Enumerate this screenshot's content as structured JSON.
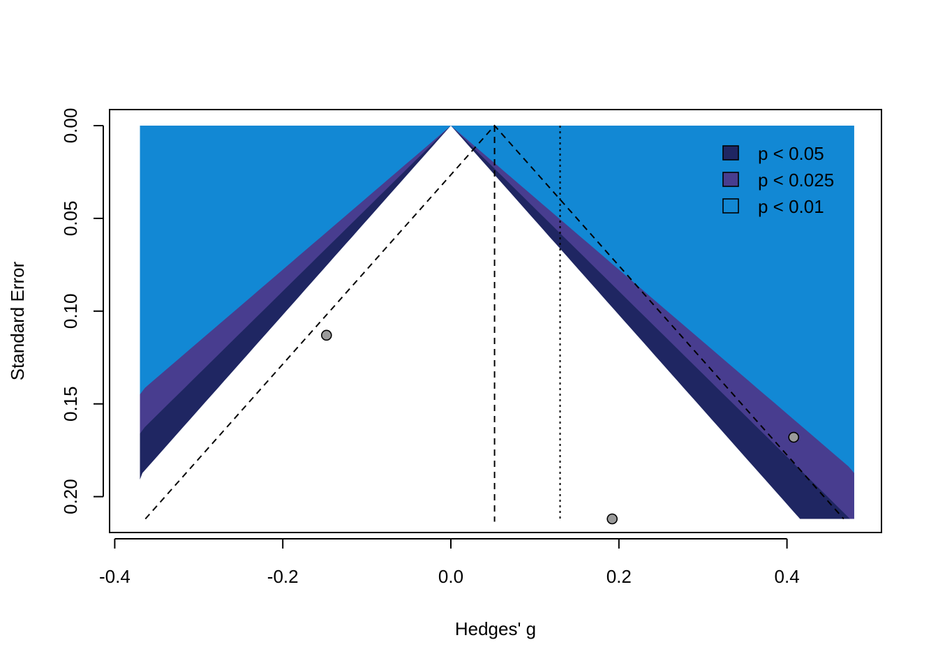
{
  "chart_data": {
    "type": "scatter",
    "subtype": "contour-enhanced funnel plot",
    "xlabel": "Hedges' g",
    "ylabel": "Standard Error",
    "xlim": [
      -0.37,
      0.48
    ],
    "ylim_reversed": [
      0.0,
      0.212
    ],
    "x_ticks": [
      -0.4,
      -0.2,
      0.0,
      0.2,
      0.4
    ],
    "x_tick_labels": [
      "-0.4",
      "-0.2",
      "0.0",
      "0.2",
      "0.4"
    ],
    "y_ticks": [
      0.0,
      0.05,
      0.1,
      0.15,
      0.2
    ],
    "y_tick_labels": [
      "0.00",
      "0.05",
      "0.10",
      "0.15",
      "0.20"
    ],
    "contour_center": 0.0,
    "background_color": "#1288d4",
    "contours": [
      {
        "label": "p < 0.05",
        "z": 1.96,
        "color": "#1f2662"
      },
      {
        "label": "p < 0.025",
        "z": 2.241,
        "color": "#483d8f"
      },
      {
        "label": "p < 0.01",
        "z": 2.576,
        "color": "#1288d4"
      }
    ],
    "points": [
      {
        "x": -0.148,
        "se": 0.113
      },
      {
        "x": 0.192,
        "se": 0.212
      },
      {
        "x": 0.408,
        "se": 0.168
      }
    ],
    "point_color": "#9a9a9a",
    "pooled_estimate": 0.052,
    "reference_line_x": 0.13,
    "legend": {
      "position": "top-right",
      "entries": [
        "p < 0.05",
        "p < 0.025",
        "p < 0.01"
      ]
    },
    "grid": false
  }
}
